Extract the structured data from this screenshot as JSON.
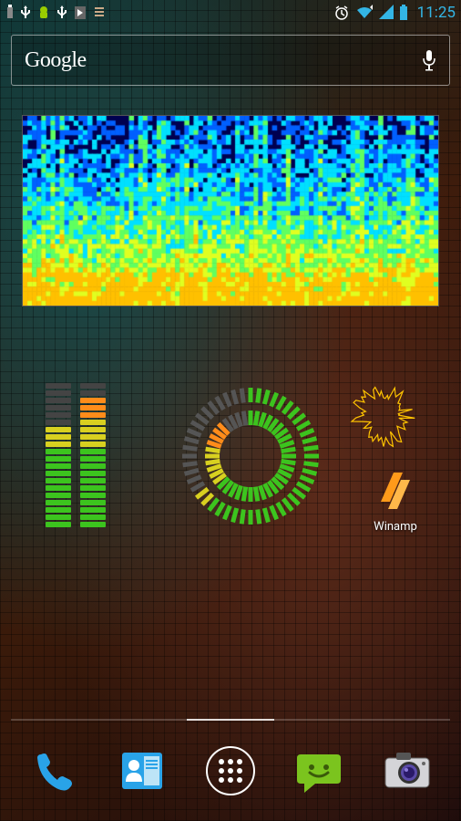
{
  "status": {
    "clock": "11:25",
    "battery_color": "#33b5e5",
    "signal_color": "#33b5e5",
    "wifi_color": "#33b5e5",
    "icon_color": "#ffffff"
  },
  "search": {
    "logo_text": "Google",
    "logo_color": "#ffffff",
    "mic_color": "#ffffff"
  },
  "spectrogram": {
    "type": "spectrogram",
    "background_color": "#000050",
    "colors_low_to_high": [
      "#0000a0",
      "#0060ff",
      "#00e0ff",
      "#60ff60",
      "#e0ff20",
      "#ffc000"
    ],
    "cols": 90,
    "rows": 40,
    "low_freq_energy_ratio": 0.35
  },
  "vu": {
    "type": "bar",
    "segments": 20,
    "left_level": 14,
    "right_level": 18,
    "seg_width": 28,
    "seg_height": 6,
    "gap": 2,
    "colors": {
      "green": "#3cc41e",
      "yellow": "#d8d020",
      "orange": "#ff8c1a",
      "red": "#ff2a1a",
      "off": "#444444"
    },
    "thresholds": {
      "yellow_from": 11,
      "orange_from": 15,
      "red_from": 18
    }
  },
  "circular": {
    "type": "radial-gauge",
    "outer_segments": 48,
    "outer_level": 32,
    "inner_segments": 40,
    "inner_level": 36,
    "colors": {
      "green": "#3cc41e",
      "yellow": "#d8d020",
      "orange": "#ff8c1a",
      "off": "#555555"
    },
    "outer_thresholds": {
      "yellow_from": 30,
      "orange_from": 40
    },
    "inner_thresholds": {
      "yellow_from": 26,
      "orange_from": 32
    },
    "radius_outer": 75,
    "radius_inner": 50,
    "seg_len": 16,
    "seg_thick": 5
  },
  "spiky": {
    "type": "radial-wave",
    "color": "#ffc400",
    "points": 64,
    "radius_base": 22,
    "radius_var": 20
  },
  "winamp": {
    "label": "Winamp",
    "accent": "#ff9a1a"
  },
  "page_indicator": {
    "pages": 5,
    "active": 2
  },
  "dock": {
    "items": [
      {
        "name": "phone",
        "color": "#29a3e8"
      },
      {
        "name": "contacts",
        "color": "#29a3e8"
      },
      {
        "name": "apps",
        "color": "#ffffff"
      },
      {
        "name": "messaging",
        "color": "#7bc41e"
      },
      {
        "name": "camera",
        "color": "#888888"
      }
    ]
  }
}
